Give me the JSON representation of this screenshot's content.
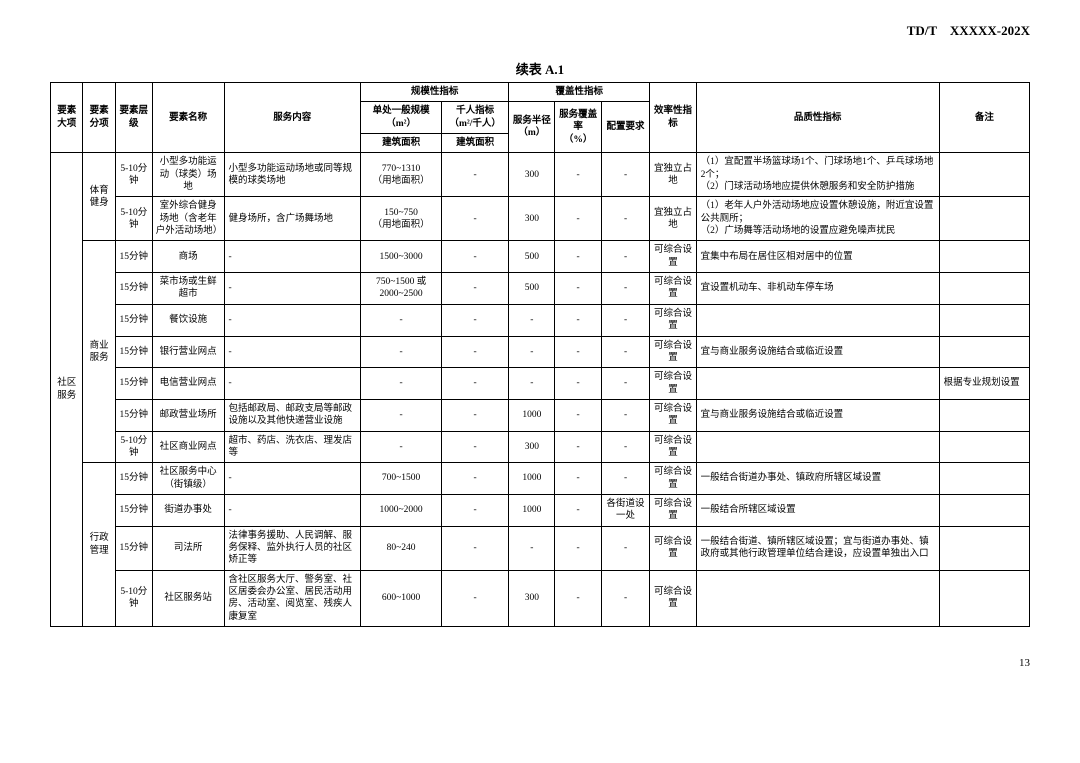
{
  "docHeader": "TD/T　XXXXX-202X",
  "tableTitle": "续表 A.1",
  "pageNum": "13",
  "headers": {
    "col1": "要素大项",
    "col2": "要素分项",
    "col3": "要素层级",
    "col4": "要素名称",
    "col5": "服务内容",
    "g1": "规模性指标",
    "g1a_top": "单处一般规模",
    "g1a_unit": "（m²）",
    "g1a_sub": "建筑面积",
    "g1b_top": "千人指标",
    "g1b_unit": "（m²/千人）",
    "g1b_sub": "建筑面积",
    "g2": "覆盖性指标",
    "g2a_top": "服务半径",
    "g2a_unit": "（m）",
    "g2b_top": "服务覆盖率",
    "g2b_unit": "（%）",
    "g2c": "配置要求",
    "col11": "效率性指标",
    "col12": "品质性指标",
    "col13": "备注"
  },
  "majorCat": "社区服务",
  "groups": {
    "sport": "体育健身",
    "biz": "商业服务",
    "admin": "行政管理"
  },
  "rows": [
    {
      "lvl": "5-10分钟",
      "name": "小型多功能运动（球类）场地",
      "svc": "小型多功能运动场地或同等规模的球类场地",
      "scale": "770~1310\n（用地面积）",
      "per1k": "-",
      "radius": "300",
      "cover": "-",
      "cfg": "-",
      "eff": "宜独立占地",
      "qual": "（1）宜配置半场篮球场1个、门球场地1个、乒乓球场地2个；\n（2）门球活动场地应提供休憩服务和安全防护措施",
      "note": ""
    },
    {
      "lvl": "5-10分钟",
      "name": "室外综合健身场地（含老年户外活动场地）",
      "svc": "健身场所，含广场舞场地",
      "scale": "150~750\n（用地面积）",
      "per1k": "-",
      "radius": "300",
      "cover": "-",
      "cfg": "-",
      "eff": "宜独立占地",
      "qual": "（1）老年人户外活动场地应设置休憩设施，附近宜设置公共厕所；\n（2）广场舞等活动场地的设置应避免噪声扰民",
      "note": ""
    },
    {
      "lvl": "15分钟",
      "name": "商场",
      "svc": "-",
      "scale": "1500~3000",
      "per1k": "-",
      "radius": "500",
      "cover": "-",
      "cfg": "-",
      "eff": "可综合设置",
      "qual": "宜集中布局在居住区相对居中的位置",
      "note": ""
    },
    {
      "lvl": "15分钟",
      "name": "菜市场或生鲜超市",
      "svc": "-",
      "scale": "750~1500 或\n2000~2500",
      "per1k": "-",
      "radius": "500",
      "cover": "-",
      "cfg": "-",
      "eff": "可综合设置",
      "qual": "宜设置机动车、非机动车停车场",
      "note": ""
    },
    {
      "lvl": "15分钟",
      "name": "餐饮设施",
      "svc": "-",
      "scale": "-",
      "per1k": "-",
      "radius": "-",
      "cover": "-",
      "cfg": "-",
      "eff": "可综合设置",
      "qual": "",
      "note": ""
    },
    {
      "lvl": "15分钟",
      "name": "银行营业网点",
      "svc": "-",
      "scale": "-",
      "per1k": "-",
      "radius": "-",
      "cover": "-",
      "cfg": "-",
      "eff": "可综合设置",
      "qual": "宜与商业服务设施结合或临近设置",
      "note": ""
    },
    {
      "lvl": "15分钟",
      "name": "电信营业网点",
      "svc": "-",
      "scale": "-",
      "per1k": "-",
      "radius": "-",
      "cover": "-",
      "cfg": "-",
      "eff": "可综合设置",
      "qual": "",
      "note": "根据专业规划设置"
    },
    {
      "lvl": "15分钟",
      "name": "邮政营业场所",
      "svc": "包括邮政局、邮政支局等邮政设施以及其他快递营业设施",
      "scale": "-",
      "per1k": "-",
      "radius": "1000",
      "cover": "-",
      "cfg": "-",
      "eff": "可综合设置",
      "qual": "宜与商业服务设施结合或临近设置",
      "note": ""
    },
    {
      "lvl": "5-10分钟",
      "name": "社区商业网点",
      "svc": "超市、药店、洗衣店、理发店等",
      "scale": "-",
      "per1k": "-",
      "radius": "300",
      "cover": "-",
      "cfg": "-",
      "eff": "可综合设置",
      "qual": "",
      "note": ""
    },
    {
      "lvl": "15分钟",
      "name": "社区服务中心（街镇级）",
      "svc": "-",
      "scale": "700~1500",
      "per1k": "-",
      "radius": "1000",
      "cover": "-",
      "cfg": "-",
      "eff": "可综合设置",
      "qual": "一般结合街道办事处、镇政府所辖区域设置",
      "note": ""
    },
    {
      "lvl": "15分钟",
      "name": "街道办事处",
      "svc": "-",
      "scale": "1000~2000",
      "per1k": "-",
      "radius": "1000",
      "cover": "-",
      "cfg": "各街道设一处",
      "eff": "可综合设置",
      "qual": "一般结合所辖区域设置",
      "note": ""
    },
    {
      "lvl": "15分钟",
      "name": "司法所",
      "svc": "法律事务援助、人民调解、服务保释、监外执行人员的社区矫正等",
      "scale": "80~240",
      "per1k": "-",
      "radius": "-",
      "cover": "-",
      "cfg": "-",
      "eff": "可综合设置",
      "qual": "一般结合街道、镇所辖区域设置；宜与街道办事处、镇政府或其他行政管理单位结合建设，应设置单独出入口",
      "note": ""
    },
    {
      "lvl": "5-10分钟",
      "name": "社区服务站",
      "svc": "含社区服务大厅、警务室、社区居委会办公室、居民活动用房、活动室、阅览室、残疾人康复室",
      "scale": "600~1000",
      "per1k": "-",
      "radius": "300",
      "cover": "-",
      "cfg": "-",
      "eff": "可综合设置",
      "qual": "",
      "note": ""
    }
  ]
}
